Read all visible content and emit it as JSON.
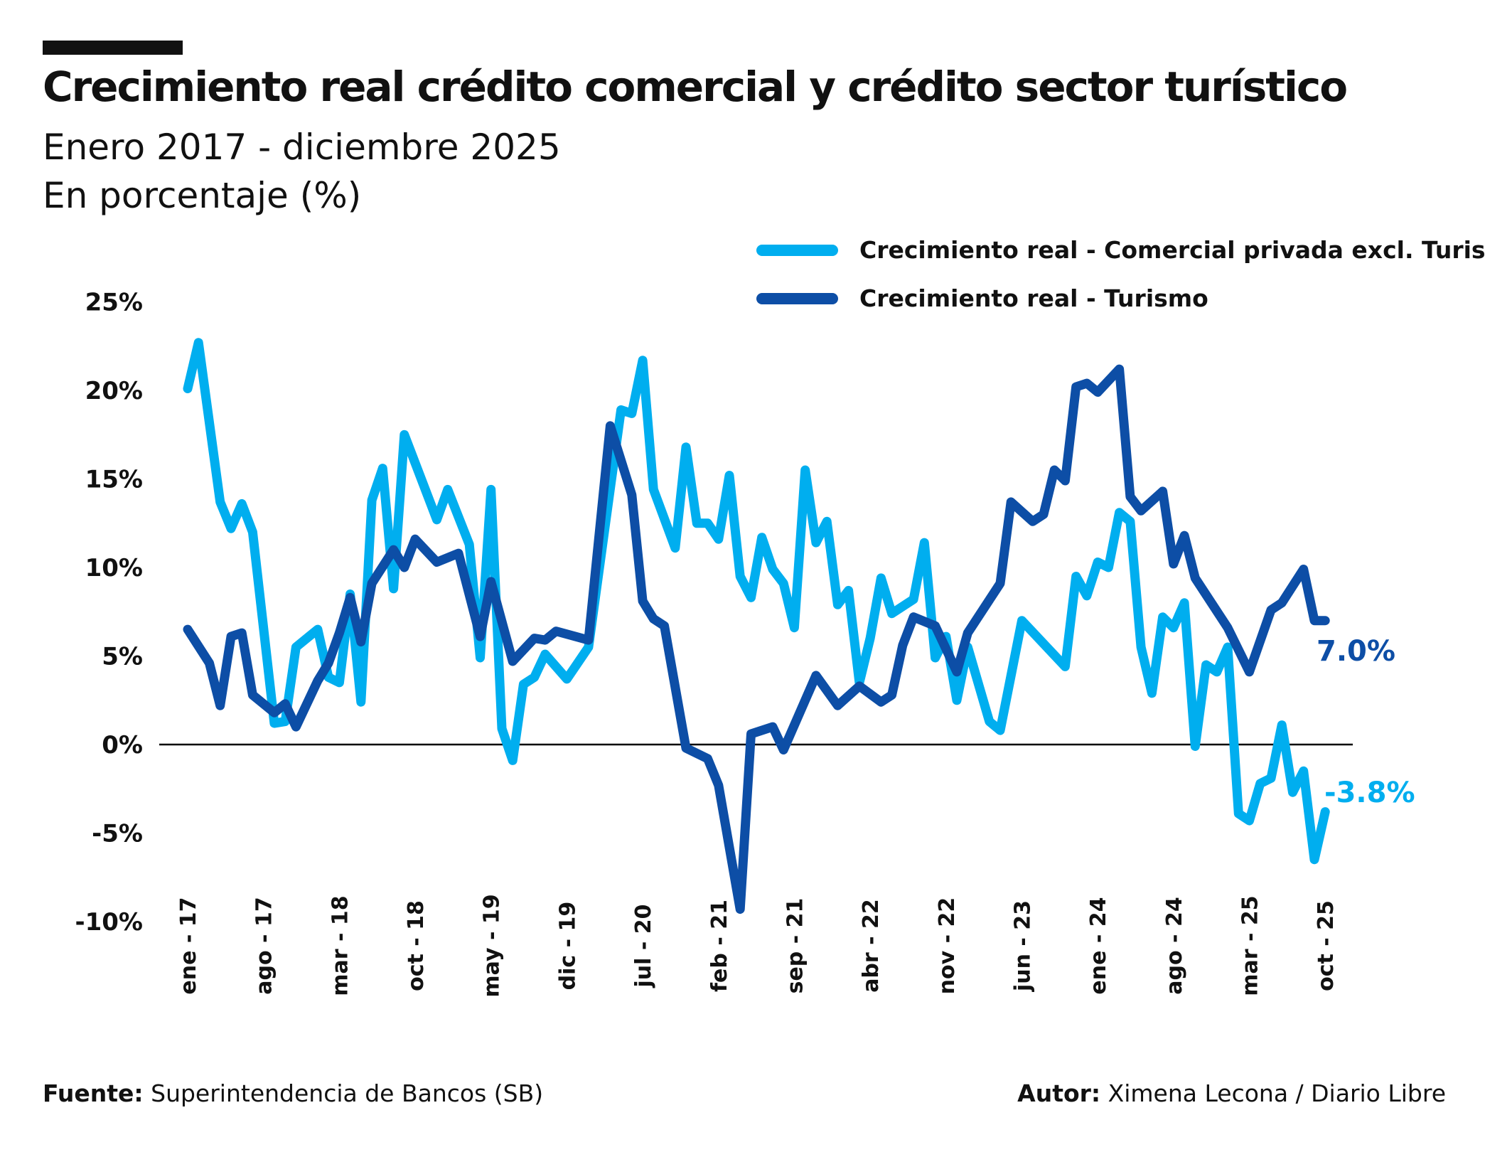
{
  "header": {
    "title": "Crecimiento real crédito comercial y crédito sector turístico",
    "subtitle": "Enero 2017 - diciembre 2025",
    "unit_line": "En porcentaje (%)"
  },
  "footer": {
    "source_label": "Fuente:",
    "source": "Superintendencia de Bancos (SB)",
    "author_label": "Autor:",
    "author": "Ximena Lecona / Diario Libre"
  },
  "colors": {
    "comercial": "#00aeef",
    "turismo": "#0d4ea6",
    "zero_line": "#000000"
  },
  "chart_data": {
    "type": "line",
    "title": "Crecimiento real crédito comercial y crédito sector turístico",
    "xlabel": "",
    "ylabel": "",
    "ylim": [
      -10,
      25
    ],
    "grid": false,
    "legend": "top-right",
    "y_ticks": [
      {
        "value": 25,
        "label": "25%"
      },
      {
        "value": 20,
        "label": "20%"
      },
      {
        "value": 15,
        "label": "15%"
      },
      {
        "value": 10,
        "label": "10%"
      },
      {
        "value": 5,
        "label": "5%"
      },
      {
        "value": 0,
        "label": "0%"
      },
      {
        "value": -5,
        "label": "-5%"
      },
      {
        "value": -10,
        "label": "-10%"
      }
    ],
    "x_ticks": [
      {
        "date": "2017-01",
        "label": "ene - 17"
      },
      {
        "date": "2017-08",
        "label": "ago - 17"
      },
      {
        "date": "2018-03",
        "label": "mar - 18"
      },
      {
        "date": "2018-10",
        "label": "oct - 18"
      },
      {
        "date": "2019-05",
        "label": "may - 19"
      },
      {
        "date": "2019-12",
        "label": "dic - 19"
      },
      {
        "date": "2020-07",
        "label": "jul - 20"
      },
      {
        "date": "2021-02",
        "label": "feb - 21"
      },
      {
        "date": "2021-09",
        "label": "sep - 21"
      },
      {
        "date": "2022-04",
        "label": "abr - 22"
      },
      {
        "date": "2022-11",
        "label": "nov - 22"
      },
      {
        "date": "2023-06",
        "label": "jun - 23"
      },
      {
        "date": "2024-01",
        "label": "ene - 24"
      },
      {
        "date": "2024-08",
        "label": "ago - 24"
      },
      {
        "date": "2025-03",
        "label": "mar - 25"
      },
      {
        "date": "2025-10",
        "label": "oct - 25"
      }
    ],
    "series": [
      {
        "name": "Crecimiento real - Comercial privada excl. Turismo",
        "color": "#00aeef",
        "end_label": "-3.8%",
        "points": [
          [
            "2017-01",
            20.1
          ],
          [
            "2017-02",
            22.7
          ],
          [
            "2017-04",
            13.7
          ],
          [
            "2017-05",
            12.2
          ],
          [
            "2017-06",
            13.6
          ],
          [
            "2017-07",
            12.0
          ],
          [
            "2017-09",
            1.2
          ],
          [
            "2017-10",
            1.3
          ],
          [
            "2017-11",
            5.5
          ],
          [
            "2018-01",
            6.5
          ],
          [
            "2018-02",
            3.8
          ],
          [
            "2018-03",
            3.5
          ],
          [
            "2018-04",
            8.5
          ],
          [
            "2018-05",
            2.4
          ],
          [
            "2018-06",
            13.8
          ],
          [
            "2018-07",
            15.6
          ],
          [
            "2018-08",
            8.8
          ],
          [
            "2018-09",
            17.5
          ],
          [
            "2018-12",
            12.7
          ],
          [
            "2019-01",
            14.4
          ],
          [
            "2019-03",
            11.3
          ],
          [
            "2019-04",
            4.9
          ],
          [
            "2019-05",
            14.4
          ],
          [
            "2019-06",
            0.9
          ],
          [
            "2019-07",
            -0.9
          ],
          [
            "2019-08",
            3.4
          ],
          [
            "2019-09",
            3.8
          ],
          [
            "2019-10",
            5.1
          ],
          [
            "2019-12",
            3.7
          ],
          [
            "2020-02",
            5.5
          ],
          [
            "2020-05",
            18.9
          ],
          [
            "2020-06",
            18.7
          ],
          [
            "2020-07",
            21.7
          ],
          [
            "2020-08",
            14.4
          ],
          [
            "2020-10",
            11.1
          ],
          [
            "2020-11",
            16.8
          ],
          [
            "2020-12",
            12.5
          ],
          [
            "2021-01",
            12.5
          ],
          [
            "2021-02",
            11.6
          ],
          [
            "2021-03",
            15.2
          ],
          [
            "2021-04",
            9.5
          ],
          [
            "2021-05",
            8.3
          ],
          [
            "2021-06",
            11.7
          ],
          [
            "2021-07",
            9.9
          ],
          [
            "2021-08",
            9.1
          ],
          [
            "2021-09",
            6.6
          ],
          [
            "2021-10",
            15.5
          ],
          [
            "2021-11",
            11.4
          ],
          [
            "2021-12",
            12.6
          ],
          [
            "2022-01",
            7.9
          ],
          [
            "2022-02",
            8.7
          ],
          [
            "2022-03",
            3.5
          ],
          [
            "2022-04",
            6.0
          ],
          [
            "2022-05",
            9.4
          ],
          [
            "2022-06",
            7.4
          ],
          [
            "2022-08",
            8.2
          ],
          [
            "2022-09",
            11.4
          ],
          [
            "2022-10",
            4.9
          ],
          [
            "2022-11",
            6.1
          ],
          [
            "2022-12",
            2.5
          ],
          [
            "2023-01",
            5.5
          ],
          [
            "2023-03",
            1.3
          ],
          [
            "2023-04",
            0.8
          ],
          [
            "2023-06",
            7.0
          ],
          [
            "2023-10",
            4.4
          ],
          [
            "2023-11",
            9.5
          ],
          [
            "2023-12",
            8.4
          ],
          [
            "2024-01",
            10.3
          ],
          [
            "2024-02",
            10.0
          ],
          [
            "2024-03",
            13.1
          ],
          [
            "2024-04",
            12.6
          ],
          [
            "2024-05",
            5.5
          ],
          [
            "2024-06",
            2.9
          ],
          [
            "2024-07",
            7.2
          ],
          [
            "2024-08",
            6.6
          ],
          [
            "2024-09",
            8.0
          ],
          [
            "2024-10",
            -0.1
          ],
          [
            "2024-11",
            4.5
          ],
          [
            "2024-12",
            4.1
          ],
          [
            "2025-01",
            5.5
          ],
          [
            "2025-02",
            -3.9
          ],
          [
            "2025-03",
            -4.3
          ],
          [
            "2025-04",
            -2.2
          ],
          [
            "2025-05",
            -1.9
          ],
          [
            "2025-06",
            1.1
          ],
          [
            "2025-07",
            -2.7
          ],
          [
            "2025-08",
            -1.5
          ],
          [
            "2025-09",
            -6.5
          ],
          [
            "2025-10",
            -3.8
          ]
        ]
      },
      {
        "name": "Crecimiento real - Turismo",
        "color": "#0d4ea6",
        "end_label": "7.0%",
        "points": [
          [
            "2017-01",
            6.5
          ],
          [
            "2017-03",
            4.6
          ],
          [
            "2017-04",
            2.2
          ],
          [
            "2017-05",
            6.1
          ],
          [
            "2017-06",
            6.3
          ],
          [
            "2017-07",
            2.8
          ],
          [
            "2017-09",
            1.8
          ],
          [
            "2017-10",
            2.3
          ],
          [
            "2017-11",
            1.0
          ],
          [
            "2018-01",
            3.6
          ],
          [
            "2018-02",
            4.6
          ],
          [
            "2018-03",
            6.3
          ],
          [
            "2018-04",
            8.3
          ],
          [
            "2018-05",
            5.8
          ],
          [
            "2018-06",
            9.1
          ],
          [
            "2018-08",
            11.0
          ],
          [
            "2018-09",
            10.0
          ],
          [
            "2018-10",
            11.6
          ],
          [
            "2018-12",
            10.3
          ],
          [
            "2019-02",
            10.8
          ],
          [
            "2019-04",
            6.1
          ],
          [
            "2019-05",
            9.2
          ],
          [
            "2019-07",
            4.7
          ],
          [
            "2019-09",
            6.0
          ],
          [
            "2019-10",
            5.9
          ],
          [
            "2019-11",
            6.4
          ],
          [
            "2020-02",
            5.9
          ],
          [
            "2020-04",
            18.0
          ],
          [
            "2020-06",
            14.1
          ],
          [
            "2020-07",
            8.1
          ],
          [
            "2020-08",
            7.1
          ],
          [
            "2020-09",
            6.7
          ],
          [
            "2020-11",
            -0.2
          ],
          [
            "2021-01",
            -0.8
          ],
          [
            "2021-02",
            -2.3
          ],
          [
            "2021-04",
            -9.3
          ],
          [
            "2021-05",
            0.6
          ],
          [
            "2021-07",
            1.0
          ],
          [
            "2021-08",
            -0.3
          ],
          [
            "2021-11",
            3.9
          ],
          [
            "2022-01",
            2.2
          ],
          [
            "2022-03",
            3.3
          ],
          [
            "2022-05",
            2.4
          ],
          [
            "2022-06",
            2.8
          ],
          [
            "2022-07",
            5.6
          ],
          [
            "2022-08",
            7.2
          ],
          [
            "2022-10",
            6.7
          ],
          [
            "2022-12",
            4.1
          ],
          [
            "2023-01",
            6.3
          ],
          [
            "2023-04",
            9.1
          ],
          [
            "2023-05",
            13.7
          ],
          [
            "2023-07",
            12.6
          ],
          [
            "2023-08",
            13.0
          ],
          [
            "2023-09",
            15.5
          ],
          [
            "2023-10",
            14.9
          ],
          [
            "2023-11",
            20.2
          ],
          [
            "2023-12",
            20.4
          ],
          [
            "2024-01",
            19.9
          ],
          [
            "2024-03",
            21.2
          ],
          [
            "2024-04",
            14.0
          ],
          [
            "2024-05",
            13.2
          ],
          [
            "2024-07",
            14.3
          ],
          [
            "2024-08",
            10.2
          ],
          [
            "2024-09",
            11.8
          ],
          [
            "2024-10",
            9.4
          ],
          [
            "2025-01",
            6.6
          ],
          [
            "2025-03",
            4.1
          ],
          [
            "2025-05",
            7.6
          ],
          [
            "2025-06",
            8.0
          ],
          [
            "2025-08",
            9.9
          ],
          [
            "2025-09",
            7.0
          ],
          [
            "2025-10",
            7.0
          ]
        ]
      }
    ]
  }
}
